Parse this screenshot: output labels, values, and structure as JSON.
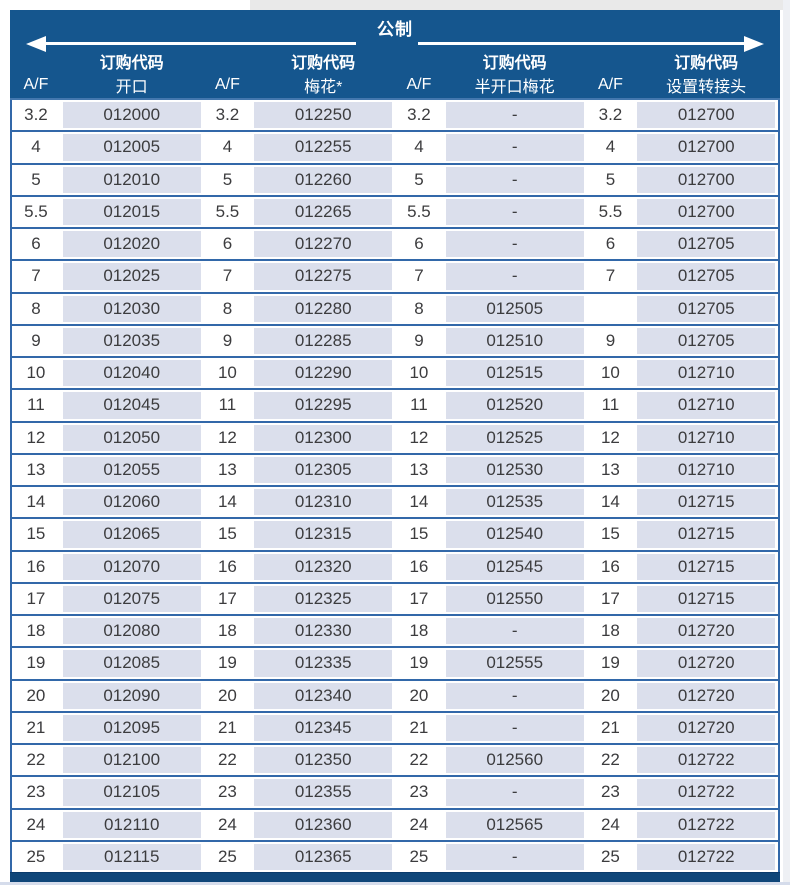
{
  "header": {
    "title": "公制",
    "order_code_label": "订购代码",
    "columns": [
      {
        "af_label": "A/F",
        "type_label": "开口"
      },
      {
        "af_label": "A/F",
        "type_label": "梅花*"
      },
      {
        "af_label": "A/F",
        "type_label": "半开口梅花"
      },
      {
        "af_label": "A/F",
        "type_label": "设置转接头"
      }
    ]
  },
  "colors": {
    "header_blue": "#15568e",
    "divider_blue": "#3268a9",
    "cell_light": "#dbdfec",
    "footer_bar": "#0f4679",
    "text": "#3c3c3e"
  },
  "table": {
    "rows": [
      [
        "3.2",
        "012000",
        "3.2",
        "012250",
        "3.2",
        "-",
        "3.2",
        "012700"
      ],
      [
        "4",
        "012005",
        "4",
        "012255",
        "4",
        "-",
        "4",
        "012700"
      ],
      [
        "5",
        "012010",
        "5",
        "012260",
        "5",
        "-",
        "5",
        "012700"
      ],
      [
        "5.5",
        "012015",
        "5.5",
        "012265",
        "5.5",
        "-",
        "5.5",
        "012700"
      ],
      [
        "6",
        "012020",
        "6",
        "012270",
        "6",
        "-",
        "6",
        "012705"
      ],
      [
        "7",
        "012025",
        "7",
        "012275",
        "7",
        "-",
        "7",
        "012705"
      ],
      [
        "8",
        "012030",
        "8",
        "012280",
        "8",
        "012505",
        "",
        "012705"
      ],
      [
        "9",
        "012035",
        "9",
        "012285",
        "9",
        "012510",
        "9",
        "012705"
      ],
      [
        "10",
        "012040",
        "10",
        "012290",
        "10",
        "012515",
        "10",
        "012710"
      ],
      [
        "11",
        "012045",
        "11",
        "012295",
        "11",
        "012520",
        "11",
        "012710"
      ],
      [
        "12",
        "012050",
        "12",
        "012300",
        "12",
        "012525",
        "12",
        "012710"
      ],
      [
        "13",
        "012055",
        "13",
        "012305",
        "13",
        "012530",
        "13",
        "012710"
      ],
      [
        "14",
        "012060",
        "14",
        "012310",
        "14",
        "012535",
        "14",
        "012715"
      ],
      [
        "15",
        "012065",
        "15",
        "012315",
        "15",
        "012540",
        "15",
        "012715"
      ],
      [
        "16",
        "012070",
        "16",
        "012320",
        "16",
        "012545",
        "16",
        "012715"
      ],
      [
        "17",
        "012075",
        "17",
        "012325",
        "17",
        "012550",
        "17",
        "012715"
      ],
      [
        "18",
        "012080",
        "18",
        "012330",
        "18",
        "-",
        "18",
        "012720"
      ],
      [
        "19",
        "012085",
        "19",
        "012335",
        "19",
        "012555",
        "19",
        "012720"
      ],
      [
        "20",
        "012090",
        "20",
        "012340",
        "20",
        "-",
        "20",
        "012720"
      ],
      [
        "21",
        "012095",
        "21",
        "012345",
        "21",
        "-",
        "21",
        "012720"
      ],
      [
        "22",
        "012100",
        "22",
        "012350",
        "22",
        "012560",
        "22",
        "012722"
      ],
      [
        "23",
        "012105",
        "23",
        "012355",
        "23",
        "-",
        "23",
        "012722"
      ],
      [
        "24",
        "012110",
        "24",
        "012360",
        "24",
        "012565",
        "24",
        "012722"
      ],
      [
        "25",
        "012115",
        "25",
        "012365",
        "25",
        "-",
        "25",
        "012722"
      ]
    ]
  }
}
